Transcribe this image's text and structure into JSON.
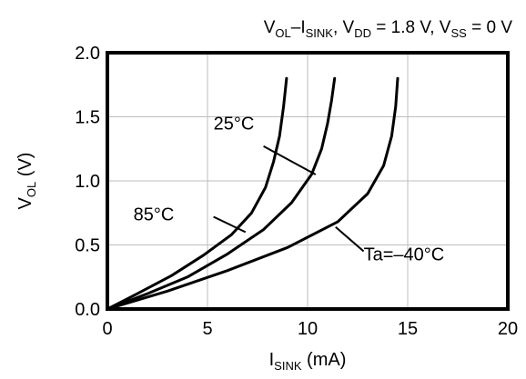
{
  "chart_data": {
    "type": "line",
    "title": {
      "parts": [
        {
          "t": "V",
          "sub": false
        },
        {
          "t": "OL",
          "sub": true
        },
        {
          "t": "–I",
          "sub": false
        },
        {
          "t": "SINK",
          "sub": true
        },
        {
          "t": ", V",
          "sub": false
        },
        {
          "t": "DD",
          "sub": true
        },
        {
          "t": " = 1.8 V, V",
          "sub": false
        },
        {
          "t": "SS",
          "sub": true
        },
        {
          "t": " = 0 V",
          "sub": false
        }
      ]
    },
    "xlabel": {
      "parts": [
        {
          "t": "I",
          "sub": false
        },
        {
          "t": "SINK",
          "sub": true
        },
        {
          "t": " (mA)",
          "sub": false
        }
      ]
    },
    "ylabel": {
      "parts": [
        {
          "t": "V",
          "sub": false
        },
        {
          "t": "OL",
          "sub": true
        },
        {
          "t": " (V)",
          "sub": false
        }
      ]
    },
    "xlim": [
      0,
      20
    ],
    "ylim": [
      0,
      2.0
    ],
    "xticks": [
      0,
      5,
      10,
      15,
      20
    ],
    "xtick_labels": [
      "0",
      "5",
      "10",
      "15",
      "20"
    ],
    "yticks": [
      0,
      0.5,
      1.0,
      1.5,
      2.0
    ],
    "ytick_labels": [
      "0.0",
      "0.5",
      "1.0",
      "1.5",
      "2.0"
    ],
    "grid": true,
    "series": [
      {
        "name": "85°C",
        "x": [
          0,
          1.5,
          3.2,
          4.8,
          6.2,
          7.2,
          7.9,
          8.3,
          8.6,
          8.8,
          8.95
        ],
        "y": [
          0,
          0.12,
          0.26,
          0.42,
          0.58,
          0.75,
          0.95,
          1.15,
          1.35,
          1.58,
          1.8
        ]
      },
      {
        "name": "25°C",
        "x": [
          0,
          2,
          4,
          6,
          7.8,
          9.2,
          10.2,
          10.7,
          11.0,
          11.2,
          11.35
        ],
        "y": [
          0,
          0.12,
          0.25,
          0.43,
          0.62,
          0.83,
          1.05,
          1.25,
          1.45,
          1.63,
          1.8
        ]
      },
      {
        "name": "Ta=–40°C",
        "x": [
          0,
          3,
          6,
          9,
          11.5,
          13.0,
          13.8,
          14.2,
          14.4,
          14.5
        ],
        "y": [
          0,
          0.14,
          0.3,
          0.48,
          0.68,
          0.9,
          1.12,
          1.35,
          1.58,
          1.8
        ]
      }
    ],
    "annotations": [
      {
        "text": "25°C",
        "label_at": [
          5.3,
          1.4
        ],
        "anchor": "start",
        "leader_from": [
          7.8,
          1.27
        ],
        "leader_to": [
          10.4,
          1.05
        ]
      },
      {
        "text": "85°C",
        "label_at": [
          1.3,
          0.69
        ],
        "anchor": "start",
        "leader_from": [
          5.3,
          0.72
        ],
        "leader_to": [
          6.9,
          0.6
        ]
      },
      {
        "text": "Ta=–40°C",
        "label_at": [
          12.8,
          0.38
        ],
        "anchor": "start",
        "leader_from": [
          12.8,
          0.45
        ],
        "leader_to": [
          11.4,
          0.64
        ]
      }
    ]
  }
}
